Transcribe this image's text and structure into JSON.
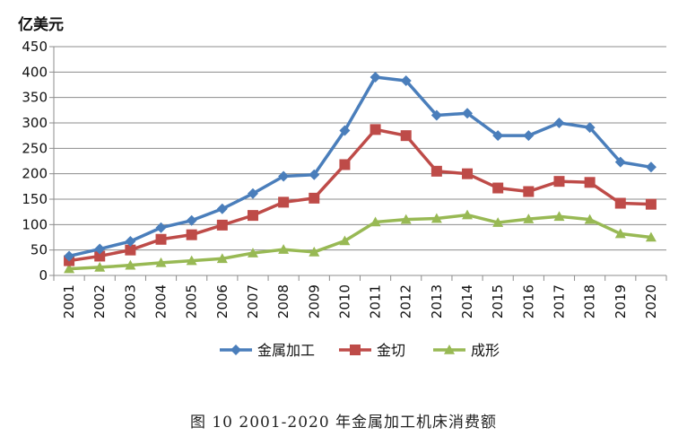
{
  "caption": "图 10 2001-2020 年金属加工机床消费额",
  "chart_data": {
    "type": "line",
    "title": "",
    "ylabel": "亿美元",
    "xlabel": "",
    "ylim": [
      0,
      450
    ],
    "yticks": [
      0,
      50,
      100,
      150,
      200,
      250,
      300,
      350,
      400,
      450
    ],
    "grid": "horizontal",
    "legend_position": "bottom",
    "categories": [
      "2001",
      "2002",
      "2003",
      "2004",
      "2005",
      "2006",
      "2007",
      "2008",
      "2009",
      "2010",
      "2011",
      "2012",
      "2013",
      "2014",
      "2015",
      "2016",
      "2017",
      "2018",
      "2019",
      "2020"
    ],
    "series": [
      {
        "name": "金属加工",
        "color": "#4a7ebb",
        "marker": "diamond",
        "values": [
          38,
          52,
          67,
          94,
          108,
          131,
          161,
          195,
          198,
          285,
          390,
          383,
          315,
          319,
          275,
          275,
          300,
          291,
          223,
          213
        ]
      },
      {
        "name": "金切",
        "color": "#be4b48",
        "marker": "square",
        "values": [
          29,
          38,
          50,
          71,
          80,
          99,
          118,
          144,
          152,
          218,
          287,
          275,
          205,
          200,
          172,
          165,
          185,
          183,
          142,
          140
        ]
      },
      {
        "name": "成形",
        "color": "#98b954",
        "marker": "triangle",
        "values": [
          13,
          16,
          20,
          25,
          29,
          33,
          44,
          51,
          46,
          68,
          105,
          110,
          112,
          119,
          104,
          111,
          116,
          110,
          82,
          75
        ]
      }
    ]
  }
}
